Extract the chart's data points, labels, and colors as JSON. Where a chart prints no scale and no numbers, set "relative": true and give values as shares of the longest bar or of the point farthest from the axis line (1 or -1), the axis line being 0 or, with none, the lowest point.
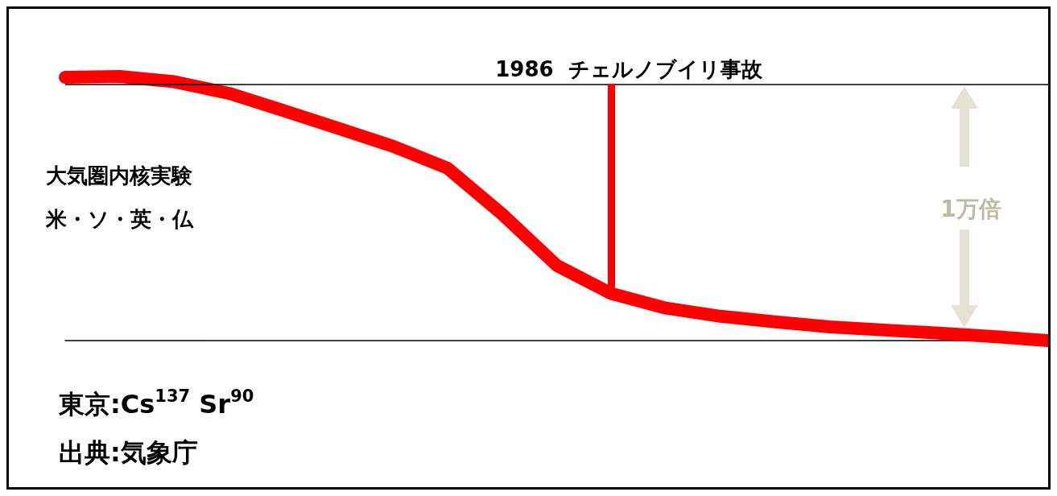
{
  "chart_data": {
    "type": "line",
    "relative": true,
    "categories": [
      null,
      null,
      null,
      null,
      null,
      null,
      null,
      null,
      null,
      null,
      null,
      null,
      null,
      null,
      null,
      null,
      null,
      null,
      null
    ],
    "series": [
      {
        "color": "#ff0000",
        "values": [
          0.997,
          1.0,
          0.98,
          0.936,
          0.871,
          0.804,
          0.736,
          0.653,
          0.479,
          0.285,
          0.178,
          0.123,
          0.092,
          0.071,
          0.052,
          0.04,
          0.028,
          0.015,
          0
        ]
      }
    ],
    "ref_lines": [
      {
        "axis": "y",
        "value": 0.972,
        "label": null,
        "color": "#000000"
      }
    ],
    "annotations": [
      "1986  チェルノブイリ事故",
      "大気圏内核実験",
      "米・ソ・英・仏",
      "1万倍",
      "東京:Cs$^{137}$ Sr$^{90}$",
      "出典:気象庁"
    ]
  }
}
